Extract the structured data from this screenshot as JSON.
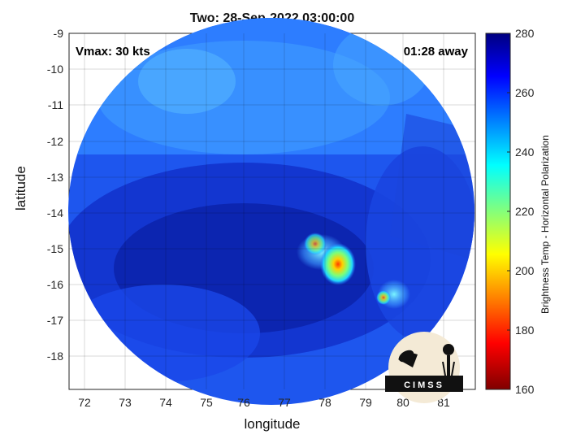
{
  "title": "Two: 28-Sep-2022 03:00:00",
  "annotations": {
    "vmax": "Vmax: 30 kts",
    "away": "01:28 away"
  },
  "axes": {
    "xlabel": "longitude",
    "ylabel": "latitude",
    "x_ticks": [
      "72",
      "73",
      "74",
      "75",
      "76",
      "77",
      "78",
      "79",
      "80",
      "81"
    ],
    "y_ticks": [
      "-9",
      "-10",
      "-11",
      "-12",
      "-13",
      "-14",
      "-15",
      "-16",
      "-17",
      "-18"
    ],
    "xlim": [
      71.5,
      81.8
    ],
    "ylim": [
      -19.0,
      -9.0
    ]
  },
  "colorbar": {
    "label": "Brightness Temp - Horizontal Polarization",
    "ticks": [
      "280",
      "260",
      "240",
      "220",
      "200",
      "180",
      "160"
    ],
    "range": [
      160,
      280
    ],
    "colormap": "jet"
  },
  "logo": {
    "text": "CIMSS"
  },
  "colors": {
    "background": "#1a3fd8",
    "deep": "#0b1f9a",
    "light": "#3a8cff"
  }
}
